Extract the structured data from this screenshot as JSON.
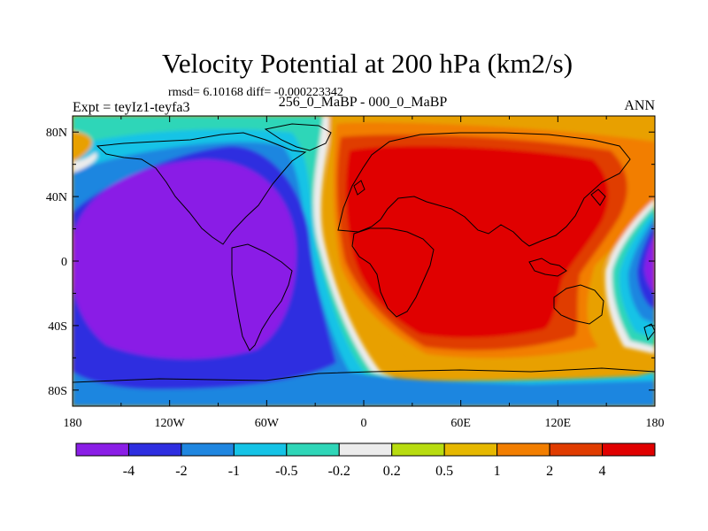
{
  "chart_data": {
    "type": "heatmap",
    "title": "Velocity Potential at 200 hPa (km2/s)",
    "stats": "rmsd= 6.10168 diff= -0.000223342",
    "left_label": "Expt = teyIz1-teyfa3",
    "center_label": "256_0_MaBP - 000_0_MaBP",
    "right_label": "ANN",
    "x_ticks": [
      "180",
      "120W",
      "60W",
      "0",
      "60E",
      "120E",
      "180"
    ],
    "x_tick_values": [
      -180,
      -120,
      -60,
      0,
      60,
      120,
      180
    ],
    "y_ticks": [
      "80N",
      "40N",
      "0",
      "40S",
      "80S"
    ],
    "y_tick_values": [
      80,
      40,
      0,
      -40,
      -80
    ],
    "xlim": [
      -180,
      180
    ],
    "ylim": [
      -90,
      90
    ],
    "colorbar": {
      "levels": [
        "-4",
        "-2",
        "-1",
        "-0.5",
        "-0.2",
        "0.2",
        "0.5",
        "1",
        "2",
        "4"
      ],
      "colors": [
        "#8a1ee6",
        "#2e2ee0",
        "#1f86e0",
        "#15c3e6",
        "#2fd6b8",
        "#ececec",
        "#b8dc10",
        "#e6b800",
        "#f27e00",
        "#e03c00",
        "#e00000"
      ]
    },
    "regions": [
      {
        "name": "western hemisphere negative center",
        "center_lon": -100,
        "center_lat": 5,
        "min_value_approx": -5
      },
      {
        "name": "eastern hemisphere positive center",
        "center_lon": 55,
        "center_lat": 15,
        "max_value_approx": 5
      },
      {
        "name": "west pacific negative",
        "center_lon": 175,
        "center_lat": 0,
        "value_approx": -4
      }
    ]
  }
}
